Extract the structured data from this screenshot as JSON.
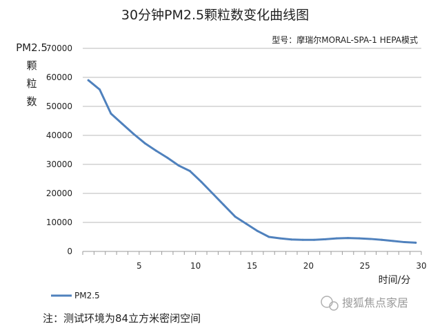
{
  "chart_data": {
    "type": "line",
    "title": "30分钟PM2.5颗粒数变化曲线图",
    "subtitle": "型号：摩瑞尔MORAL-SPA-1 HEPA模式",
    "ylabel": "PM2.5颗粒数",
    "xlabel": "时间/分",
    "ylim": [
      0,
      70000
    ],
    "xlim": [
      0,
      30
    ],
    "yticks": [
      0,
      10000,
      20000,
      30000,
      40000,
      50000,
      60000,
      70000
    ],
    "xticks": [
      5,
      10,
      15,
      20,
      25,
      30
    ],
    "grid": "horizontal",
    "legend": "bottom-left",
    "series": [
      {
        "name": "PM2.5",
        "color": "#4f81bd",
        "x": [
          0.5,
          1.5,
          2.5,
          3.5,
          4.5,
          5.5,
          6.5,
          7.5,
          8.5,
          9.5,
          10.5,
          11.5,
          12.5,
          13.5,
          14.5,
          15.5,
          16.5,
          17.5,
          18.5,
          19.5,
          20.5,
          21.5,
          22.5,
          23.5,
          24.5,
          25.5,
          26.5,
          27.5,
          28.5,
          29.5
        ],
        "y": [
          59000,
          55800,
          47500,
          44000,
          40500,
          37300,
          34700,
          32300,
          29600,
          27700,
          24000,
          20000,
          16000,
          12000,
          9500,
          7000,
          5000,
          4500,
          4100,
          4000,
          4000,
          4200,
          4500,
          4600,
          4500,
          4300,
          4000,
          3600,
          3200,
          3000
        ]
      }
    ]
  },
  "footer": {
    "note": "注：测试环境为84立方米密闭空间",
    "watermark": "搜狐焦点家居"
  }
}
